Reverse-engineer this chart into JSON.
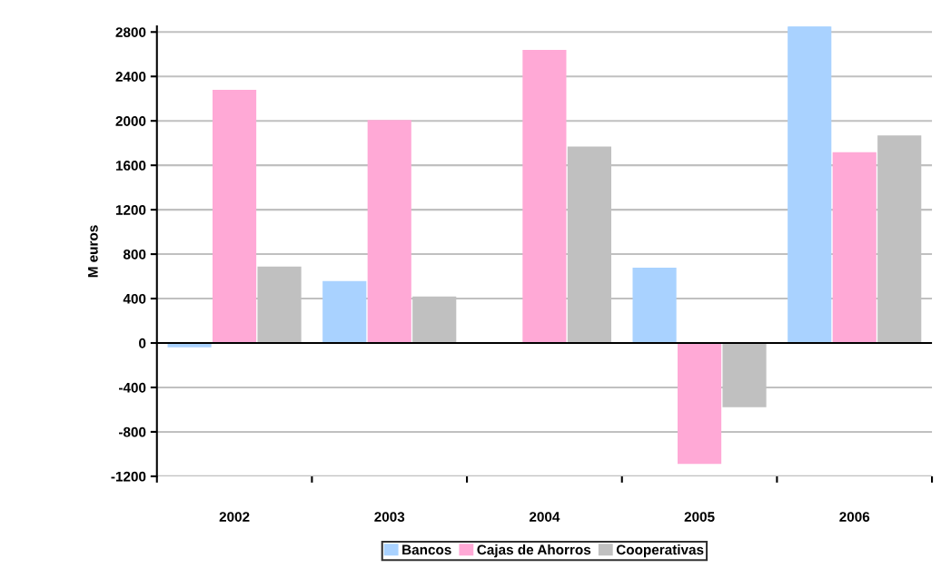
{
  "chart_data": {
    "type": "bar",
    "ylabel": "M euros",
    "categories": [
      "2002",
      "2003",
      "2004",
      "2005",
      "2006"
    ],
    "series": [
      {
        "name": "Bancos",
        "color": "#a9d2ff",
        "values": [
          -30,
          550,
          null,
          670,
          2850
        ]
      },
      {
        "name": "Cajas de Ahorros",
        "color": "#ffa9d6",
        "values": [
          2270,
          2000,
          2630,
          -1080,
          1710
        ]
      },
      {
        "name": "Cooperativas",
        "color": "#c0c0c0",
        "values": [
          680,
          410,
          1760,
          -570,
          1860
        ]
      }
    ],
    "ylim": [
      -1200,
      2850
    ],
    "yticks": [
      -1200,
      -800,
      -400,
      0,
      400,
      800,
      1200,
      1600,
      2000,
      2400,
      2800
    ],
    "grid": "y",
    "legend": "bottom"
  }
}
